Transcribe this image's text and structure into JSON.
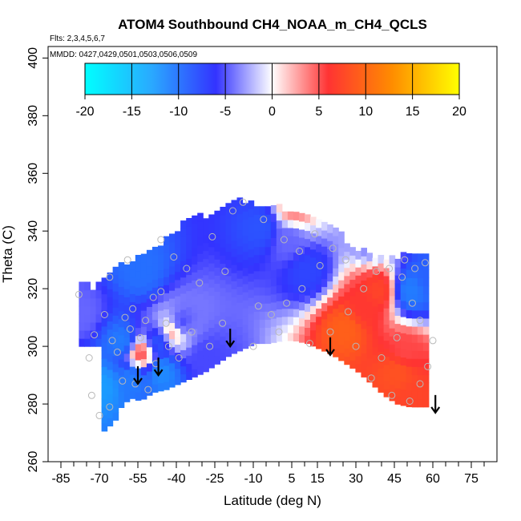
{
  "chart_data": {
    "type": "heatmap",
    "title": "ATOM4 Southbound CH4_NOAA_m_CH4_QCLS",
    "flights_label": "Flts: 2,3,4,5,6,7",
    "dates_label": "MMDD: 0427,0429,0501,0503,0506,0509",
    "xlabel": "Latitude (deg N)",
    "ylabel": "Theta (C)",
    "xlim": [
      -90,
      85
    ],
    "ylim": [
      260,
      404
    ],
    "x_ticks": [
      -85,
      -70,
      -55,
      -40,
      -25,
      -10,
      5,
      15,
      30,
      45,
      60,
      75
    ],
    "x_ticks_minor": [
      -80,
      -75,
      -65,
      -60,
      -50,
      -45,
      -35,
      -30,
      -20,
      -15,
      -5,
      0,
      10,
      20,
      25,
      35,
      40,
      50,
      55,
      65,
      70,
      80
    ],
    "y_ticks": [
      260,
      280,
      300,
      320,
      340,
      360,
      380,
      400
    ],
    "colorbar": {
      "min": -20,
      "max": 20,
      "ticks": [
        -20,
        -15,
        -10,
        -5,
        0,
        5,
        10,
        15,
        20
      ],
      "colors": [
        "#00ffff",
        "#1e90ff",
        "#3333ff",
        "#ffffff",
        "#ff3333",
        "#ff8c00",
        "#ffff00"
      ]
    },
    "lower_boundary": [
      [
        -70,
        270
      ],
      [
        -65,
        274
      ],
      [
        -62,
        280
      ],
      [
        -58,
        282
      ],
      [
        -55,
        281
      ],
      [
        -50,
        284
      ],
      [
        -45,
        285
      ],
      [
        -40,
        287
      ],
      [
        -35,
        289
      ],
      [
        -30,
        291
      ],
      [
        -25,
        294
      ],
      [
        -20,
        297
      ],
      [
        -15,
        299
      ],
      [
        -10,
        301
      ],
      [
        -5,
        301
      ],
      [
        0,
        302
      ],
      [
        5,
        302
      ],
      [
        10,
        301
      ],
      [
        15,
        299
      ],
      [
        20,
        297
      ],
      [
        25,
        294
      ],
      [
        30,
        291
      ],
      [
        35,
        287
      ],
      [
        40,
        283
      ],
      [
        45,
        280
      ],
      [
        50,
        279
      ],
      [
        55,
        279
      ]
    ],
    "upper_boundary": [
      [
        -75,
        315
      ],
      [
        -70,
        322
      ],
      [
        -65,
        326
      ],
      [
        -60,
        327
      ],
      [
        -55,
        330
      ],
      [
        -50,
        333
      ],
      [
        -45,
        336
      ],
      [
        -40,
        340
      ],
      [
        -35,
        343
      ],
      [
        -30,
        344
      ],
      [
        -25,
        346
      ],
      [
        -20,
        348
      ],
      [
        -15,
        350
      ],
      [
        -10,
        348
      ],
      [
        -5,
        346
      ],
      [
        0,
        347
      ],
      [
        5,
        346
      ],
      [
        10,
        345
      ],
      [
        15,
        342
      ],
      [
        20,
        340
      ],
      [
        25,
        336
      ],
      [
        30,
        333
      ],
      [
        35,
        330
      ],
      [
        40,
        330
      ],
      [
        45,
        330
      ],
      [
        50,
        331
      ],
      [
        55,
        330
      ]
    ],
    "anomalies": [
      {
        "lat": -70,
        "theta": 285,
        "value": -14
      },
      {
        "lat": -62,
        "theta": 300,
        "value": -12
      },
      {
        "lat": -55,
        "theta": 325,
        "value": -11
      },
      {
        "lat": -48,
        "theta": 300,
        "value": -9
      },
      {
        "lat": -47,
        "theta": 290,
        "value": -13
      },
      {
        "lat": -58,
        "theta": 288,
        "value": -12
      },
      {
        "lat": -40,
        "theta": 306,
        "value": -7
      },
      {
        "lat": -30,
        "theta": 295,
        "value": -6
      },
      {
        "lat": -55,
        "theta": 296,
        "value": 6
      },
      {
        "lat": -42,
        "theta": 304,
        "value": 4
      },
      {
        "lat": -8,
        "theta": 340,
        "value": -9
      },
      {
        "lat": 10,
        "theta": 325,
        "value": -8
      },
      {
        "lat": 3,
        "theta": 336,
        "value": -5
      },
      {
        "lat": 25,
        "theta": 305,
        "value": 10
      },
      {
        "lat": 38,
        "theta": 318,
        "value": 8
      },
      {
        "lat": 32,
        "theta": 312,
        "value": 7
      },
      {
        "lat": 45,
        "theta": 290,
        "value": 9
      },
      {
        "lat": 48,
        "theta": 297,
        "value": 6
      },
      {
        "lat": 50,
        "theta": 280,
        "value": 8
      },
      {
        "lat": 50,
        "theta": 318,
        "value": -12
      },
      {
        "lat": 58,
        "theta": 322,
        "value": -10
      },
      {
        "lat": 5,
        "theta": 346,
        "value": 4
      },
      {
        "lat": 35,
        "theta": 336,
        "value": -4
      },
      {
        "lat": -78,
        "theta": 310,
        "value": -5
      }
    ],
    "sample_points": [
      [
        -68,
        311
      ],
      [
        -72,
        304
      ],
      [
        -65,
        302
      ],
      [
        -63,
        298
      ],
      [
        -60,
        310
      ],
      [
        -57,
        313
      ],
      [
        -52,
        309
      ],
      [
        -49,
        317
      ],
      [
        -46,
        319
      ],
      [
        -44,
        308
      ],
      [
        -61,
        288
      ],
      [
        -56,
        287
      ],
      [
        -51,
        285
      ],
      [
        -66,
        279
      ],
      [
        -70,
        276
      ],
      [
        -73,
        283
      ],
      [
        -58,
        306
      ],
      [
        -54,
        303
      ],
      [
        -48,
        294
      ],
      [
        -43,
        300
      ],
      [
        -39,
        296
      ],
      [
        -34,
        305
      ],
      [
        -27,
        300
      ],
      [
        -22,
        308
      ],
      [
        -31,
        322
      ],
      [
        -36,
        327
      ],
      [
        -41,
        331
      ],
      [
        -46,
        337
      ],
      [
        -26,
        338
      ],
      [
        -18,
        347
      ],
      [
        -14,
        350
      ],
      [
        -6,
        344
      ],
      [
        2,
        337
      ],
      [
        8,
        333
      ],
      [
        14,
        339
      ],
      [
        21,
        334
      ],
      [
        26,
        330
      ],
      [
        16,
        328
      ],
      [
        9,
        320
      ],
      [
        3,
        315
      ],
      [
        -3,
        311
      ],
      [
        -8,
        314
      ],
      [
        12,
        301
      ],
      [
        20,
        305
      ],
      [
        27,
        312
      ],
      [
        33,
        320
      ],
      [
        38,
        326
      ],
      [
        43,
        327
      ],
      [
        48,
        324
      ],
      [
        52,
        315
      ],
      [
        55,
        309
      ],
      [
        46,
        303
      ],
      [
        40,
        296
      ],
      [
        36,
        289
      ],
      [
        44,
        283
      ],
      [
        51,
        281
      ],
      [
        55,
        287
      ],
      [
        58,
        293
      ],
      [
        60,
        302
      ],
      [
        49,
        330
      ],
      [
        53,
        327
      ],
      [
        57,
        329
      ],
      [
        -10,
        300
      ],
      [
        0,
        305
      ],
      [
        30,
        300
      ],
      [
        -78,
        318
      ],
      [
        -74,
        296
      ],
      [
        -66,
        324
      ],
      [
        -59,
        330
      ],
      [
        -21,
        326
      ]
    ],
    "arrows": [
      {
        "lat": -55,
        "theta": 287
      },
      {
        "lat": -47,
        "theta": 290
      },
      {
        "lat": -19,
        "theta": 300
      },
      {
        "lat": 20,
        "theta": 297
      },
      {
        "lat": 61,
        "theta": 277
      }
    ]
  }
}
